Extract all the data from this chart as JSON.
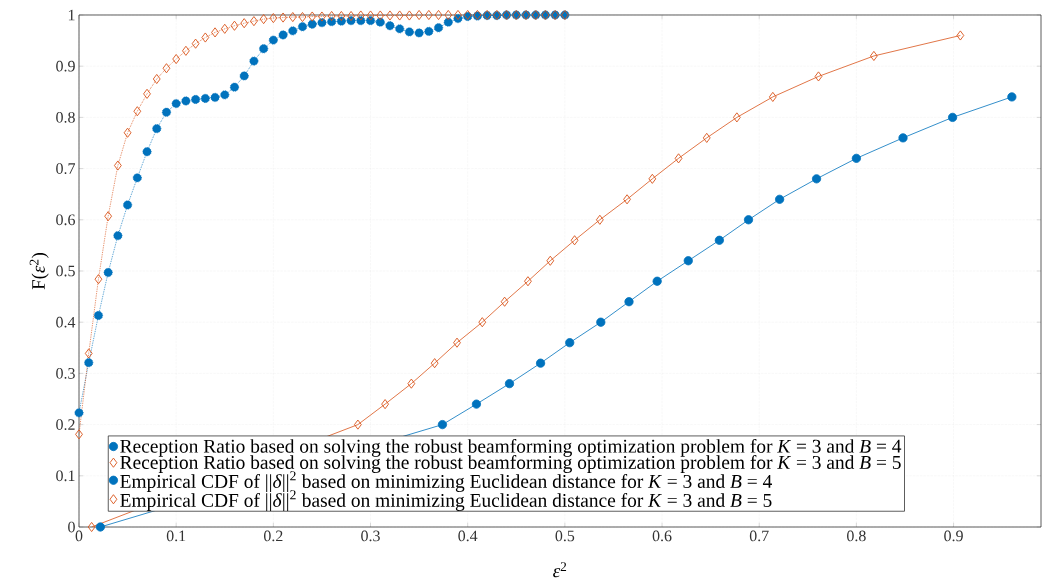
{
  "chart_data": {
    "type": "line",
    "xlabel": "*ε*$^{2}$",
    "ylabel": "F(*ε*$^{2}$)",
    "xlim": [
      0,
      0.99
    ],
    "ylim": [
      0,
      1
    ],
    "xticks": [
      0,
      0.1,
      0.2,
      0.3,
      0.4,
      0.5,
      0.6,
      0.7,
      0.8,
      0.9
    ],
    "yticks": [
      0,
      0.1,
      0.2,
      0.3,
      0.4,
      0.5,
      0.6,
      0.7,
      0.8,
      0.9,
      1
    ],
    "grid": true,
    "legend": "bottom left",
    "series": [
      {
        "name": "Reception Ratio based on solving the robust beamforming optimization problem for *K* = 3 and *B* = 4",
        "color": "#0072bd",
        "marker": "circle",
        "line_style": "dotted",
        "x": [
          0,
          0.01,
          0.02,
          0.03,
          0.04,
          0.05,
          0.06,
          0.07,
          0.08,
          0.09,
          0.1,
          0.11,
          0.12,
          0.13,
          0.14,
          0.15,
          0.16,
          0.17,
          0.18,
          0.19,
          0.2,
          0.21,
          0.22,
          0.23,
          0.24,
          0.25,
          0.26,
          0.27,
          0.28,
          0.29,
          0.3,
          0.31,
          0.32,
          0.33,
          0.34,
          0.35,
          0.36,
          0.37,
          0.38,
          0.39,
          0.4,
          0.41,
          0.42,
          0.43,
          0.44,
          0.45,
          0.46,
          0.47,
          0.48,
          0.49,
          0.5
        ],
        "values": [
          0.223,
          0.321,
          0.413,
          0.497,
          0.569,
          0.629,
          0.682,
          0.733,
          0.778,
          0.81,
          0.827,
          0.832,
          0.835,
          0.837,
          0.839,
          0.844,
          0.859,
          0.881,
          0.91,
          0.934,
          0.951,
          0.961,
          0.969,
          0.977,
          0.982,
          0.985,
          0.987,
          0.988,
          0.989,
          0.989,
          0.989,
          0.986,
          0.979,
          0.973,
          0.967,
          0.965,
          0.968,
          0.975,
          0.986,
          0.993,
          0.997,
          0.998,
          0.999,
          0.999,
          1,
          1,
          1,
          1,
          1,
          1,
          1
        ]
      },
      {
        "name": "Reception Ratio based on solving the robust beamforming optimization problem for *K* = 3 and *B* = 5",
        "color": "#d95319",
        "marker": "diamond",
        "line_style": "dotted",
        "x": [
          0,
          0.01,
          0.02,
          0.03,
          0.04,
          0.05,
          0.06,
          0.07,
          0.08,
          0.09,
          0.1,
          0.11,
          0.12,
          0.13,
          0.14,
          0.15,
          0.16,
          0.17,
          0.18,
          0.19,
          0.2,
          0.21,
          0.22,
          0.23,
          0.24,
          0.25,
          0.26,
          0.27,
          0.28,
          0.29,
          0.3,
          0.31,
          0.32,
          0.33,
          0.34,
          0.35,
          0.36,
          0.37,
          0.38,
          0.39,
          0.4,
          0.41,
          0.42,
          0.43,
          0.44,
          0.45,
          0.46,
          0.47,
          0.48,
          0.49,
          0.5
        ],
        "values": [
          0.181,
          0.339,
          0.484,
          0.607,
          0.706,
          0.77,
          0.812,
          0.846,
          0.875,
          0.896,
          0.914,
          0.93,
          0.944,
          0.956,
          0.966,
          0.973,
          0.979,
          0.984,
          0.988,
          0.992,
          0.994,
          0.995,
          0.996,
          0.996,
          0.997,
          0.997,
          0.998,
          0.998,
          0.998,
          0.999,
          0.999,
          0.999,
          0.999,
          0.999,
          0.999,
          1,
          1,
          1,
          1,
          1,
          1,
          1,
          1,
          1,
          1,
          1,
          1,
          1,
          1,
          1,
          1
        ]
      },
      {
        "name": "Empirical CDF of ||*δ*||$^{2}$ based on minimizing Euclidean distance for *K* = 3 and *B* = 4",
        "color": "#0072bd",
        "marker": "circle",
        "line_style": "solid",
        "x": [
          0.022,
          0.374,
          0.409,
          0.443,
          0.475,
          0.505,
          0.537,
          0.566,
          0.595,
          0.627,
          0.659,
          0.689,
          0.721,
          0.759,
          0.8,
          0.848,
          0.899,
          0.96
        ],
        "values": [
          0,
          0.2,
          0.24,
          0.28,
          0.32,
          0.36,
          0.4,
          0.44,
          0.48,
          0.52,
          0.56,
          0.6,
          0.64,
          0.68,
          0.72,
          0.76,
          0.8,
          0.84
        ]
      },
      {
        "name": "Empirical CDF of ||*δ*||$^{2}$ based on minimizing Euclidean distance for *K* = 3 and *B* = 5",
        "color": "#d95319",
        "marker": "diamond",
        "line_style": "solid",
        "x": [
          0.013,
          0.287,
          0.315,
          0.342,
          0.366,
          0.389,
          0.415,
          0.438,
          0.462,
          0.485,
          0.51,
          0.536,
          0.564,
          0.59,
          0.617,
          0.646,
          0.677,
          0.714,
          0.761,
          0.818,
          0.907
        ],
        "values": [
          0,
          0.2,
          0.24,
          0.28,
          0.32,
          0.36,
          0.4,
          0.44,
          0.48,
          0.52,
          0.56,
          0.6,
          0.64,
          0.68,
          0.72,
          0.76,
          0.8,
          0.84,
          0.88,
          0.92,
          0.96
        ]
      }
    ]
  }
}
